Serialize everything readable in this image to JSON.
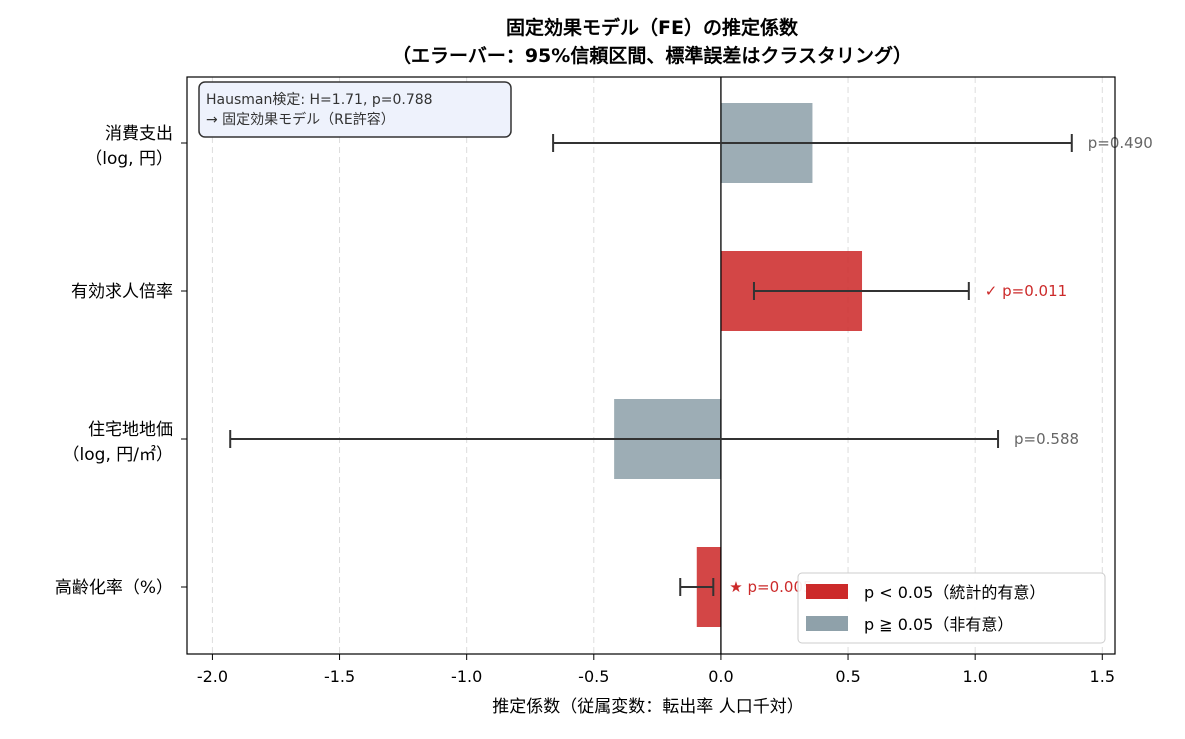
{
  "chart_data": {
    "type": "bar",
    "orientation": "horizontal",
    "title": "固定効果モデル（FE）の推定係数",
    "subtitle": "（エラーバー：95%信頼区間、標準誤差はクラスタリング）",
    "xlabel": "推定係数（従属変数：転出率 人口千対）",
    "xlim": [
      -2.1,
      1.55
    ],
    "xticks": [
      -2.0,
      -1.5,
      -1.0,
      -0.5,
      0.0,
      0.5,
      1.0,
      1.5
    ],
    "xtick_labels": [
      "-2.0",
      "-1.5",
      "-1.0",
      "-0.5",
      "0.0",
      "0.5",
      "1.0",
      "1.5"
    ],
    "grid": "x-dashed",
    "categories": [
      {
        "label_line1": "消費支出",
        "label_line2": "（log, 円）",
        "estimate": 0.36,
        "ci_low": -0.66,
        "ci_high": 1.38,
        "p_label": "p=0.490",
        "significant": false
      },
      {
        "label_line1": "有効求人倍率",
        "label_line2": "",
        "estimate": 0.555,
        "ci_low": 0.13,
        "ci_high": 0.975,
        "p_label": "✓ p=0.011",
        "significant": true
      },
      {
        "label_line1": "住宅地地価",
        "label_line2": "（log, 円/㎡）",
        "estimate": -0.42,
        "ci_low": -1.93,
        "ci_high": 1.09,
        "p_label": "p=0.588",
        "significant": false
      },
      {
        "label_line1": "高齢化率（%）",
        "label_line2": "",
        "estimate": -0.095,
        "ci_low": -0.16,
        "ci_high": -0.03,
        "p_label": "★ p=0.005",
        "significant": true
      }
    ],
    "legend": {
      "placement": "lower-right",
      "entries": [
        {
          "label": "p < 0.05（統計的有意）",
          "color": "#cc2a2a"
        },
        {
          "label": "p ≧ 0.05（非有意）",
          "color": "#8fa1aa"
        }
      ]
    },
    "annotation_box": {
      "line1": "Hausman検定: H=1.71, p=0.788",
      "line2": "→ 固定効果モデル（RE許容）"
    },
    "colors": {
      "significant": "#cc2a2a",
      "nonsignificant": "#8fa1aa",
      "significant_text": "#cc2a2a",
      "nonsignificant_text": "#666666",
      "errorbar": "#333333"
    }
  }
}
